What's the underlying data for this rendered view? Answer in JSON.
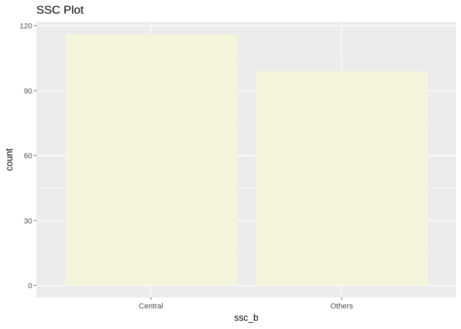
{
  "chart_data": {
    "type": "bar",
    "title": "SSC Plot",
    "xlabel": "ssc_b",
    "ylabel": "count",
    "categories": [
      "Central",
      "Others"
    ],
    "values": [
      116,
      99
    ],
    "ylim": [
      0,
      120
    ],
    "yticks": [
      0,
      30,
      60,
      90,
      120
    ],
    "grid": true,
    "colors": {
      "bar_fill": "#F5F5DC",
      "panel_background": "#EBEBEB",
      "grid": "#FFFFFF",
      "tick_text": "#4D4D4D",
      "axis_text": "#000000"
    }
  }
}
